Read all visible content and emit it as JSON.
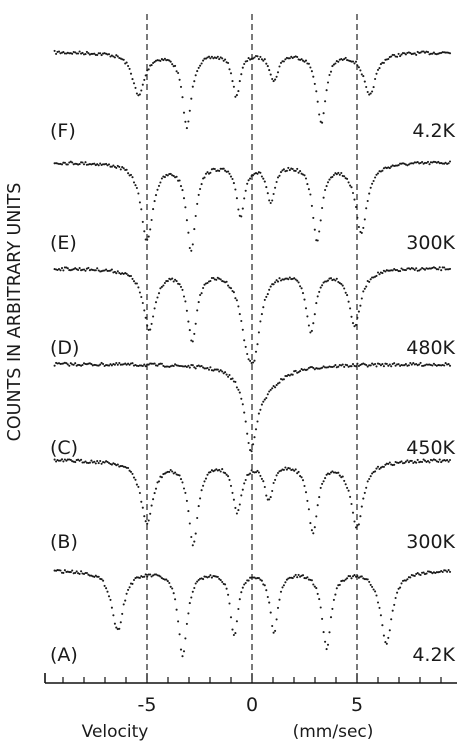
{
  "chart_data": {
    "type": "scatter",
    "xlabel": "Velocity",
    "xunit": "(mm/sec)",
    "ylabel": "COUNTS IN ARBITRARY UNITS",
    "xlim": [
      -9.5,
      9.5
    ],
    "xticks": [
      -5,
      0,
      5
    ],
    "xtick_labels": [
      "-5",
      "0",
      "5"
    ],
    "reference_lines_x": [
      -5,
      0,
      5
    ],
    "grid": false,
    "stacked_spectra": true,
    "series": [
      {
        "id": "F",
        "name": "(F)",
        "temperature": "4.2K",
        "lines": [
          {
            "pos": -5.4,
            "depth": 0.55,
            "width": 0.34
          },
          {
            "pos": -3.1,
            "depth": 0.95,
            "width": 0.26
          },
          {
            "pos": -0.75,
            "depth": 0.55,
            "width": 0.22
          },
          {
            "pos": 1.05,
            "depth": 0.35,
            "width": 0.24
          },
          {
            "pos": 3.3,
            "depth": 0.9,
            "width": 0.26
          },
          {
            "pos": 5.6,
            "depth": 0.55,
            "width": 0.34
          }
        ]
      },
      {
        "id": "E",
        "name": "(E)",
        "temperature": "300K",
        "lines": [
          {
            "pos": -5.0,
            "depth": 0.9,
            "width": 0.34
          },
          {
            "pos": -2.9,
            "depth": 1.0,
            "width": 0.26
          },
          {
            "pos": -0.55,
            "depth": 0.6,
            "width": 0.24
          },
          {
            "pos": 0.9,
            "depth": 0.45,
            "width": 0.24
          },
          {
            "pos": 3.1,
            "depth": 0.9,
            "width": 0.26
          },
          {
            "pos": 5.2,
            "depth": 0.8,
            "width": 0.34
          }
        ]
      },
      {
        "id": "D",
        "name": "(D)",
        "temperature": "480K",
        "lines": [
          {
            "pos": -4.9,
            "depth": 0.7,
            "width": 0.34
          },
          {
            "pos": -2.85,
            "depth": 0.8,
            "width": 0.28
          },
          {
            "pos": -0.25,
            "depth": 0.55,
            "width": 0.4
          },
          {
            "pos": 0.1,
            "depth": 0.75,
            "width": 0.38
          },
          {
            "pos": 2.8,
            "depth": 0.7,
            "width": 0.28
          },
          {
            "pos": 4.9,
            "depth": 0.65,
            "width": 0.34
          }
        ]
      },
      {
        "id": "C",
        "name": "(C)",
        "temperature": "450K",
        "lines": [
          {
            "pos": -0.05,
            "depth": 1.0,
            "width": 0.34
          },
          {
            "pos": 0.6,
            "depth": 0.28,
            "width": 1.0
          }
        ]
      },
      {
        "id": "B",
        "name": "(B)",
        "temperature": "300K",
        "lines": [
          {
            "pos": -5.0,
            "depth": 0.75,
            "width": 0.36
          },
          {
            "pos": -2.8,
            "depth": 1.0,
            "width": 0.28
          },
          {
            "pos": -0.7,
            "depth": 0.6,
            "width": 0.26
          },
          {
            "pos": 0.8,
            "depth": 0.45,
            "width": 0.26
          },
          {
            "pos": 2.9,
            "depth": 0.85,
            "width": 0.28
          },
          {
            "pos": 5.0,
            "depth": 0.8,
            "width": 0.36
          }
        ]
      },
      {
        "id": "A",
        "name": "(A)",
        "temperature": "4.2K",
        "lines": [
          {
            "pos": -6.4,
            "depth": 0.7,
            "width": 0.34
          },
          {
            "pos": -3.3,
            "depth": 1.0,
            "width": 0.26
          },
          {
            "pos": -0.85,
            "depth": 0.75,
            "width": 0.22
          },
          {
            "pos": 1.05,
            "depth": 0.7,
            "width": 0.24
          },
          {
            "pos": 3.55,
            "depth": 0.9,
            "width": 0.26
          },
          {
            "pos": 6.4,
            "depth": 0.85,
            "width": 0.34
          }
        ]
      }
    ]
  }
}
